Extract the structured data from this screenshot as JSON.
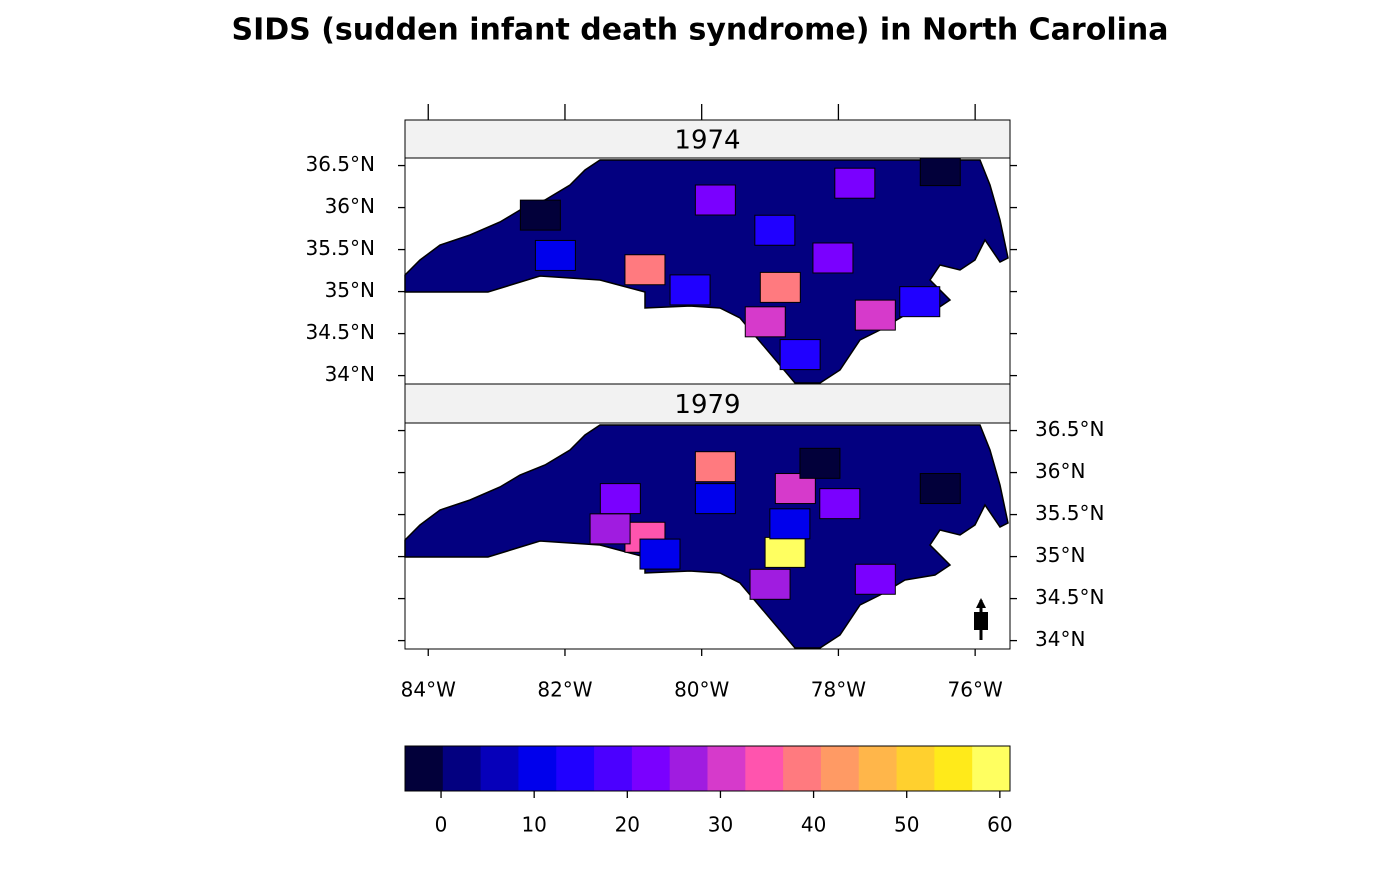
{
  "chart_data": {
    "type": "map",
    "title": "SIDS (sudden infant death syndrome) in North Carolina",
    "xlim": [
      -84.34,
      -75.49
    ],
    "ylim": [
      33.9,
      36.59
    ],
    "xticks": [
      {
        "value": -84,
        "label": "84°W"
      },
      {
        "value": -82,
        "label": "82°W"
      },
      {
        "value": -80,
        "label": "80°W"
      },
      {
        "value": -78,
        "label": "78°W"
      },
      {
        "value": -76,
        "label": "76°W"
      }
    ],
    "yticks": [
      {
        "value": 34,
        "label": "34°N"
      },
      {
        "value": 34.5,
        "label": "34.5°N"
      },
      {
        "value": 35,
        "label": "35°N"
      },
      {
        "value": 35.5,
        "label": "35.5°N"
      },
      {
        "value": 36,
        "label": "36°N"
      },
      {
        "value": 36.5,
        "label": "36.5°N"
      }
    ],
    "breaks": [
      -3.87,
      0.19,
      4.25,
      8.31,
      12.37,
      16.43,
      20.49,
      24.55,
      28.61,
      32.67,
      36.73,
      40.79,
      44.85,
      48.91,
      52.97,
      57.03,
      61.09
    ],
    "colors": [
      "#02003a",
      "#030080",
      "#0600ba",
      "#0000ec",
      "#2000ff",
      "#4b00ff",
      "#7a00ff",
      "#a01ce0",
      "#d63acb",
      "#ff54ae",
      "#ff7a7f",
      "#ff9a64",
      "#ffb64a",
      "#ffd02e",
      "#ffea1a",
      "#ffff60"
    ],
    "colorkey_ticks": [
      0,
      10,
      20,
      30,
      40,
      50,
      60
    ],
    "panels": [
      {
        "label": "1974",
        "lon": [
          -80.83,
          -78.85,
          -79.07,
          -77.46,
          -79.8,
          -77.76,
          -78.08,
          -80.17,
          -78.56,
          -78.93,
          -76.81,
          -82.14,
          -82.36,
          -76.51
        ],
        "lat": [
          35.26,
          35.05,
          34.64,
          34.72,
          36.09,
          36.29,
          35.4,
          35.02,
          34.25,
          35.73,
          34.88,
          35.43,
          35.91,
          36.44
        ],
        "values": [
          39,
          39,
          31,
          31,
          22,
          22,
          22,
          14,
          14,
          14,
          14,
          10,
          -2,
          -2
        ]
      },
      {
        "label": "1979",
        "lon": [
          -78.78,
          -79.8,
          -80.83,
          -78.63,
          -79.0,
          -81.34,
          -77.46,
          -77.98,
          -79.8,
          -80.61,
          -78.71,
          -76.51,
          -78.27,
          -81.19
        ],
        "lat": [
          35.05,
          36.07,
          35.23,
          35.81,
          34.67,
          35.33,
          34.73,
          35.63,
          35.69,
          35.03,
          35.39,
          35.81,
          36.11,
          35.69
        ],
        "values": [
          60,
          40,
          34,
          30,
          26,
          26,
          22,
          22,
          12,
          12,
          12,
          -2,
          -2,
          22
        ]
      }
    ]
  }
}
